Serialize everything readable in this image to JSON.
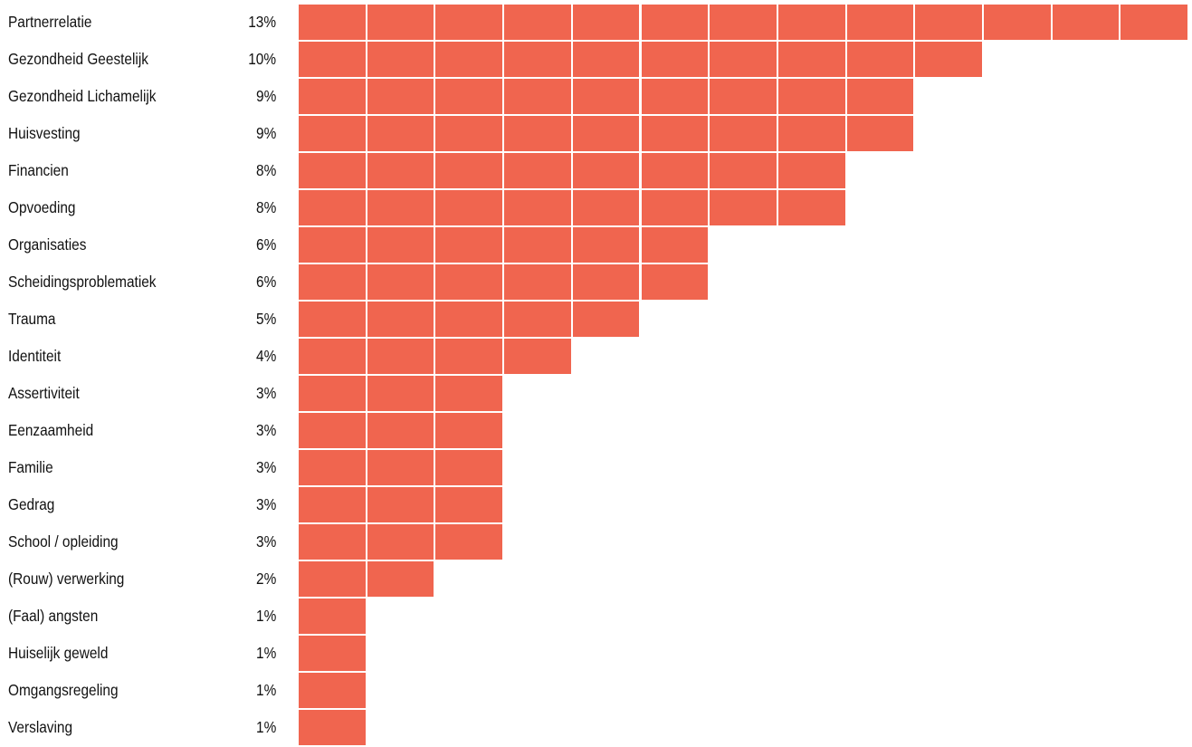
{
  "chart_data": {
    "type": "bar",
    "orientation": "horizontal",
    "style": "unit-blocks",
    "unit": "1 block = 1%",
    "bar_color": "#f0654f",
    "categories": [
      "Partnerrelatie",
      "Gezondheid Geestelijk",
      "Gezondheid Lichamelijk",
      "Huisvesting",
      "Financien",
      "Opvoeding",
      "Organisaties",
      "Scheidingsproblematiek",
      "Trauma",
      "Identiteit",
      "Assertiviteit",
      "Eenzaamheid",
      "Familie",
      "Gedrag",
      "School / opleiding",
      "(Rouw) verwerking",
      "(Faal) angsten",
      "Huiselijk geweld",
      "Omgangsregeling",
      "Verslaving"
    ],
    "values": [
      13,
      10,
      9,
      9,
      8,
      8,
      6,
      6,
      5,
      4,
      3,
      3,
      3,
      3,
      3,
      2,
      1,
      1,
      1,
      1
    ],
    "value_labels": [
      "13%",
      "10%",
      "9%",
      "9%",
      "8%",
      "8%",
      "6%",
      "6%",
      "5%",
      "4%",
      "3%",
      "3%",
      "3%",
      "3%",
      "3%",
      "2%",
      "1%",
      "1%",
      "1%",
      "1%"
    ],
    "title": "",
    "xlabel": "",
    "ylabel": "",
    "grid": false,
    "legend": "none"
  }
}
